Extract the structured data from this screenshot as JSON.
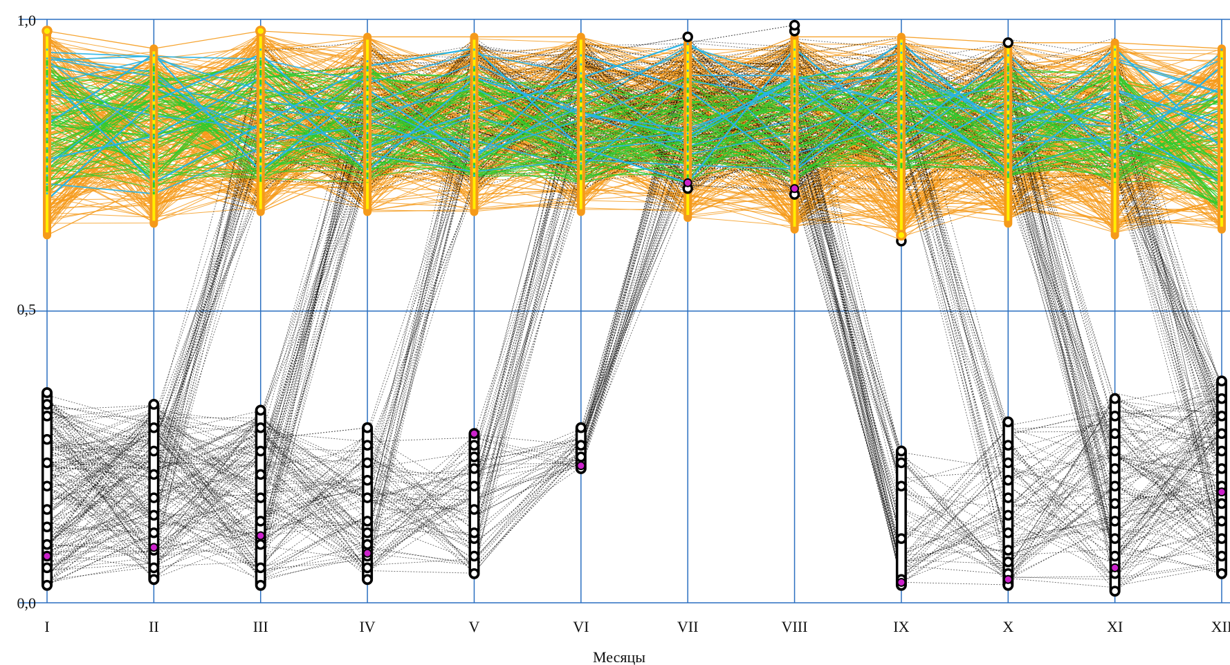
{
  "chart_data": {
    "type": "parallel-coordinates",
    "xlabel": "Месяцы",
    "ylabel": "",
    "ylim": [
      0,
      1
    ],
    "yticks": [
      "0,0",
      "0,5",
      "1,0"
    ],
    "ytick_values": [
      0,
      0.5,
      1
    ],
    "categories": [
      "I",
      "II",
      "III",
      "IV",
      "V",
      "VI",
      "VII",
      "VIII",
      "IX",
      "X",
      "XI",
      "XII"
    ],
    "grid": true,
    "colors": {
      "grid": "#2a6fc0",
      "orange": "#f59a1a",
      "green": "#2ecc2e",
      "cyan": "#27b4e6",
      "black": "#000000",
      "yellow": "#ffee00",
      "magenta": "#cc22cc"
    },
    "series": [
      {
        "color_key": "orange",
        "style": "solid",
        "ranges": [
          [
            0.63,
            0.98
          ],
          [
            0.65,
            0.95
          ],
          [
            0.67,
            0.98
          ],
          [
            0.67,
            0.97
          ],
          [
            0.67,
            0.97
          ],
          [
            0.67,
            0.97
          ],
          [
            0.66,
            0.96
          ],
          [
            0.64,
            0.97
          ],
          [
            0.62,
            0.97
          ],
          [
            0.65,
            0.96
          ],
          [
            0.63,
            0.96
          ],
          [
            0.64,
            0.95
          ]
        ],
        "profiles": [
          [
            0.63,
            0.72,
            0.67,
            0.75,
            0.68,
            0.76,
            0.7,
            0.66,
            0.64,
            0.7,
            0.65,
            0.69
          ],
          [
            0.98,
            0.95,
            0.98,
            0.97,
            0.97,
            0.97,
            0.9,
            0.97,
            0.97,
            0.96,
            0.96,
            0.95
          ],
          [
            0.85,
            0.8,
            0.92,
            0.82,
            0.88,
            0.84,
            0.86,
            0.8,
            0.78,
            0.84,
            0.8,
            0.82
          ],
          [
            0.75,
            0.9,
            0.75,
            0.9,
            0.75,
            0.9,
            0.72,
            0.88,
            0.7,
            0.9,
            0.72,
            0.88
          ],
          [
            0.9,
            0.68,
            0.88,
            0.7,
            0.9,
            0.72,
            0.92,
            0.72,
            0.9,
            0.68,
            0.92,
            0.7
          ],
          [
            0.7,
            0.78,
            0.84,
            0.86,
            0.8,
            0.74,
            0.78,
            0.84,
            0.86,
            0.78,
            0.74,
            0.8
          ],
          [
            0.8,
            0.86,
            0.7,
            0.78,
            0.86,
            0.8,
            0.68,
            0.76,
            0.8,
            0.86,
            0.88,
            0.76
          ],
          [
            0.94,
            0.88,
            0.8,
            0.72,
            0.82,
            0.9,
            0.84,
            0.7,
            0.74,
            0.8,
            0.84,
            0.9
          ],
          [
            0.68,
            0.74,
            0.95,
            0.84,
            0.72,
            0.7,
            0.74,
            0.9,
            0.92,
            0.74,
            0.7,
            0.74
          ],
          [
            0.88,
            0.92,
            0.82,
            0.68,
            0.94,
            0.86,
            0.8,
            0.82,
            0.68,
            0.72,
            0.78,
            0.84
          ]
        ]
      },
      {
        "color_key": "green",
        "style": "solid",
        "ranges": [
          [
            0.7,
            0.93
          ],
          [
            0.7,
            0.92
          ],
          [
            0.72,
            0.93
          ],
          [
            0.72,
            0.92
          ],
          [
            0.73,
            0.92
          ],
          [
            0.72,
            0.9
          ],
          [
            0.72,
            0.9
          ],
          [
            0.72,
            0.9
          ],
          [
            0.74,
            0.92
          ],
          [
            0.72,
            0.92
          ],
          [
            0.72,
            0.92
          ],
          [
            0.66,
            0.88
          ]
        ],
        "profiles": [
          [
            0.75,
            0.88,
            0.93,
            0.8,
            0.74,
            0.9,
            0.84,
            0.8,
            0.86,
            0.9,
            0.82,
            0.76
          ],
          [
            0.92,
            0.72,
            0.78,
            0.9,
            0.88,
            0.76,
            0.72,
            0.86,
            0.9,
            0.78,
            0.74,
            0.84
          ],
          [
            0.82,
            0.8,
            0.86,
            0.74,
            0.82,
            0.84,
            0.8,
            0.74,
            0.8,
            0.84,
            0.9,
            0.7
          ],
          [
            0.72,
            0.9,
            0.74,
            0.86,
            0.9,
            0.8,
            0.9,
            0.84,
            0.76,
            0.74,
            0.8,
            0.86
          ],
          [
            0.88,
            0.84,
            0.9,
            0.92,
            0.78,
            0.72,
            0.76,
            0.9,
            0.92,
            0.86,
            0.76,
            0.8
          ],
          [
            0.8,
            0.76,
            0.82,
            0.78,
            0.86,
            0.88,
            0.86,
            0.78,
            0.84,
            0.8,
            0.86,
            0.72
          ]
        ]
      },
      {
        "color_key": "cyan",
        "style": "solid",
        "ranges": [
          [
            0.69,
            0.95
          ],
          [
            0.7,
            0.94
          ],
          [
            0.72,
            0.95
          ],
          [
            0.72,
            0.93
          ],
          [
            0.72,
            0.95
          ],
          [
            0.74,
            0.94
          ],
          [
            0.7,
            0.96
          ],
          [
            0.72,
            0.95
          ],
          [
            0.76,
            0.96
          ],
          [
            0.73,
            0.94
          ],
          [
            0.74,
            0.95
          ],
          [
            0.72,
            0.95
          ]
        ],
        "profiles": [
          [
            0.69,
            0.86,
            0.94,
            0.78,
            0.84,
            0.9,
            0.96,
            0.84,
            0.96,
            0.8,
            0.95,
            0.78
          ],
          [
            0.9,
            0.72,
            0.82,
            0.92,
            0.95,
            0.78,
            0.72,
            0.95,
            0.8,
            0.94,
            0.76,
            0.92
          ],
          [
            0.82,
            0.94,
            0.74,
            0.88,
            0.76,
            0.94,
            0.88,
            0.74,
            0.88,
            0.74,
            0.88,
            0.82
          ],
          [
            0.76,
            0.8,
            0.9,
            0.74,
            0.9,
            0.84,
            0.8,
            0.9,
            0.76,
            0.86,
            0.82,
            0.72
          ]
        ]
      },
      {
        "color_key": "black",
        "style": "dotted",
        "ranges": [
          [
            0.03,
            0.36
          ],
          [
            0.04,
            0.34
          ],
          [
            0.03,
            0.33
          ],
          [
            0.04,
            0.3
          ],
          [
            0.05,
            0.29
          ],
          [
            0.23,
            0.3
          ],
          [
            0.71,
            0.97
          ],
          [
            0.7,
            0.99
          ],
          [
            0.03,
            0.26
          ],
          [
            0.03,
            0.31
          ],
          [
            0.02,
            0.36
          ],
          [
            0.05,
            0.38
          ]
        ],
        "profiles": [
          [
            0.05,
            0.2,
            0.85,
            0.82,
            0.86,
            0.9,
            0.96,
            0.99,
            0.25,
            0.05,
            0.2,
            0.1
          ],
          [
            0.3,
            0.1,
            0.2,
            0.84,
            0.9,
            0.86,
            0.88,
            0.94,
            0.9,
            0.28,
            0.04,
            0.3
          ],
          [
            0.15,
            0.3,
            0.05,
            0.15,
            0.88,
            0.84,
            0.86,
            0.9,
            0.88,
            0.92,
            0.3,
            0.06
          ],
          [
            0.22,
            0.06,
            0.25,
            0.06,
            0.2,
            0.9,
            0.92,
            0.88,
            0.8,
            0.1,
            0.15,
            0.2
          ],
          [
            0.1,
            0.25,
            0.1,
            0.25,
            0.06,
            0.25,
            0.8,
            0.82,
            0.9,
            0.86,
            0.26,
            0.15
          ],
          [
            0.35,
            0.15,
            0.3,
            0.1,
            0.24,
            0.28,
            0.72,
            0.76,
            0.04,
            0.2,
            0.08,
            0.34
          ],
          [
            0.25,
            0.28,
            0.15,
            0.2,
            0.15,
            0.24,
            0.84,
            0.8,
            0.2,
            0.06,
            0.35,
            0.25
          ],
          [
            0.03,
            0.12,
            0.28,
            0.3,
            0.1,
            0.26,
            0.9,
            0.86,
            0.1,
            0.3,
            0.1,
            0.05
          ]
        ]
      }
    ],
    "black_markers": [
      [
        0.03,
        0.06,
        0.08,
        0.1,
        0.13,
        0.16,
        0.2,
        0.24,
        0.28,
        0.32,
        0.34,
        0.36
      ],
      [
        0.04,
        0.06,
        0.09,
        0.12,
        0.15,
        0.18,
        0.22,
        0.26,
        0.3,
        0.34
      ],
      [
        0.03,
        0.06,
        0.1,
        0.14,
        0.18,
        0.22,
        0.26,
        0.3,
        0.33
      ],
      [
        0.04,
        0.06,
        0.08,
        0.1,
        0.12,
        0.14,
        0.18,
        0.21,
        0.24,
        0.27,
        0.3
      ],
      [
        0.05,
        0.08,
        0.11,
        0.12,
        0.16,
        0.2,
        0.23,
        0.25,
        0.27,
        0.29
      ],
      [
        0.23,
        0.25,
        0.27,
        0.3
      ],
      [
        0.71,
        0.97
      ],
      [
        0.7,
        0.98,
        0.99
      ],
      [
        0.03,
        0.04,
        0.11,
        0.2,
        0.24,
        0.26,
        0.62
      ],
      [
        0.03,
        0.05,
        0.07,
        0.09,
        0.12,
        0.15,
        0.18,
        0.21,
        0.24,
        0.27,
        0.31,
        0.96
      ],
      [
        0.02,
        0.05,
        0.08,
        0.11,
        0.14,
        0.17,
        0.2,
        0.23,
        0.26,
        0.29,
        0.32,
        0.35
      ],
      [
        0.05,
        0.08,
        0.11,
        0.14,
        0.17,
        0.2,
        0.23,
        0.26,
        0.29,
        0.32,
        0.35,
        0.38
      ]
    ],
    "magenta_markers": [
      0.08,
      0.095,
      0.115,
      0.085,
      0.29,
      0.235,
      0.72,
      0.71,
      0.035,
      0.04,
      0.06,
      0.19
    ],
    "orange_markers_extra": [
      [
        0.98
      ],
      [],
      [
        0.98
      ],
      [],
      [],
      [],
      [],
      [],
      [
        0.63
      ],
      [],
      [],
      []
    ]
  }
}
